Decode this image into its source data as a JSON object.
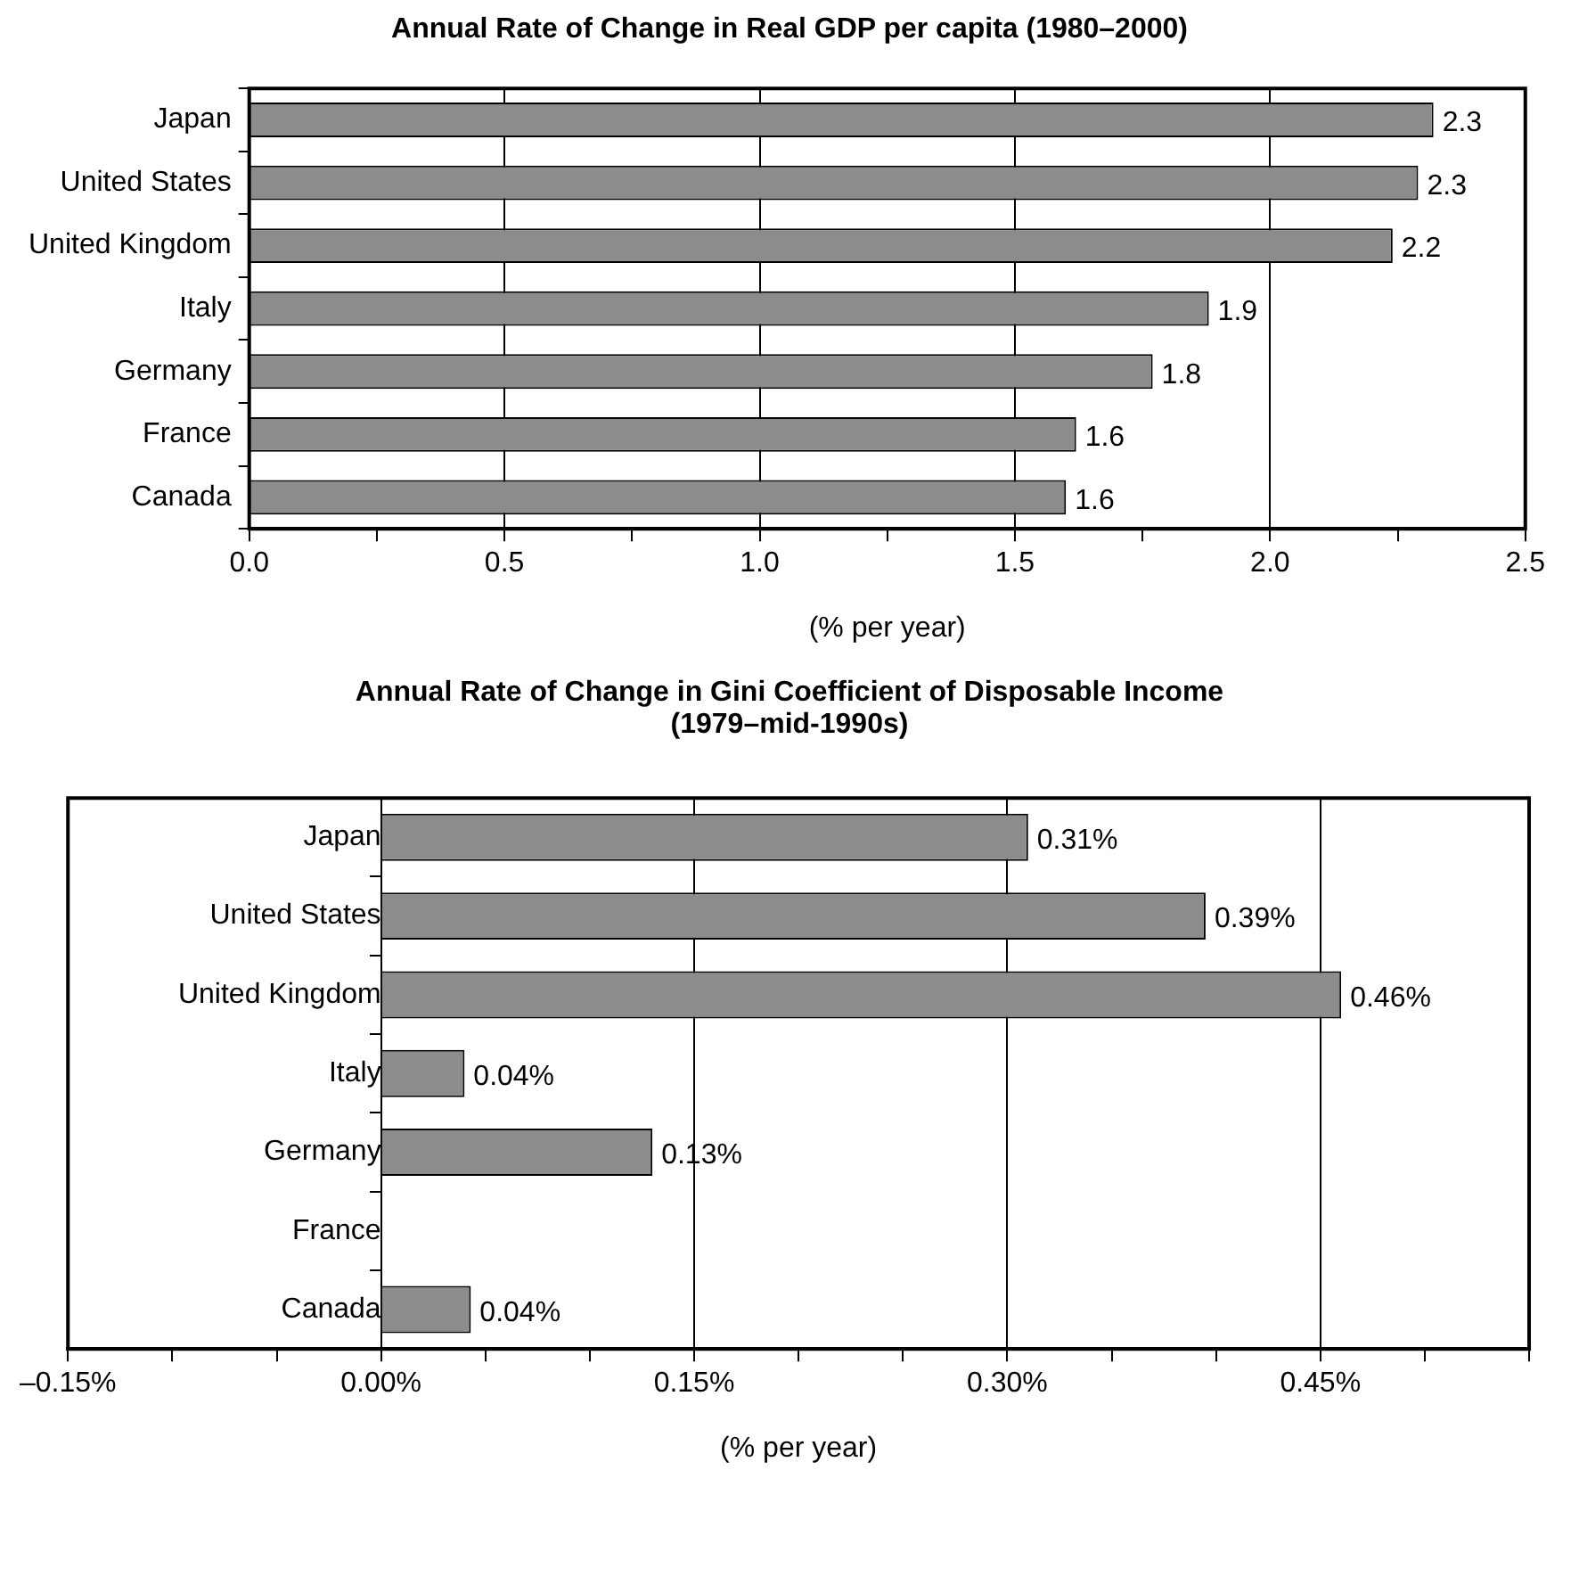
{
  "chart_data": [
    {
      "type": "bar",
      "orientation": "horizontal",
      "title": "Annual Rate of Change in Real GDP per capita (1980–2000)",
      "xlabel": "(% per year)",
      "categories": [
        "Japan",
        "United States",
        "United Kingdom",
        "Italy",
        "Germany",
        "France",
        "Canada"
      ],
      "values": [
        2.32,
        2.29,
        2.24,
        1.88,
        1.77,
        1.62,
        1.6
      ],
      "value_labels": [
        "2.3",
        "2.3",
        "2.2",
        "1.9",
        "1.8",
        "1.6",
        "1.6"
      ],
      "color": "#8c8c8c",
      "xlim": [
        0,
        2.5
      ],
      "xticks": [
        {
          "value": 0,
          "label": "0.0"
        },
        {
          "value": 0.25,
          "label": null
        },
        {
          "value": 0.5,
          "label": "0.5"
        },
        {
          "value": 0.75,
          "label": null
        },
        {
          "value": 1,
          "label": "1.0"
        },
        {
          "value": 1.25,
          "label": null
        },
        {
          "value": 1.5,
          "label": "1.5"
        },
        {
          "value": 1.75,
          "label": null
        },
        {
          "value": 2,
          "label": "2.0"
        },
        {
          "value": 2.25,
          "label": null
        },
        {
          "value": 2.5,
          "label": "2.5"
        }
      ],
      "grid": "x"
    },
    {
      "type": "bar",
      "orientation": "horizontal",
      "title": "Annual Rate of Change in Gini Coefficient of Disposable Income (1979–mid-1990s)",
      "xlabel": "(% per year)",
      "categories": [
        "Japan",
        "United States",
        "United Kingdom",
        "Italy",
        "Germany",
        "France",
        "Canada"
      ],
      "values": [
        0.31,
        0.395,
        0.46,
        0.04,
        0.13,
        null,
        0.043
      ],
      "value_labels": [
        "0.31%",
        "0.39%",
        "0.46%",
        "0.04%",
        "0.13%",
        null,
        "0.04%"
      ],
      "color": "#8c8c8c",
      "xlim": [
        -0.15,
        0.55
      ],
      "xticks": [
        {
          "value": -0.15,
          "label": "–0.15%"
        },
        {
          "value": -0.1,
          "label": null
        },
        {
          "value": -0.05,
          "label": null
        },
        {
          "value": 0,
          "label": "0.00%"
        },
        {
          "value": 0.05,
          "label": null
        },
        {
          "value": 0.1,
          "label": null
        },
        {
          "value": 0.15,
          "label": "0.15%"
        },
        {
          "value": 0.2,
          "label": null
        },
        {
          "value": 0.25,
          "label": null
        },
        {
          "value": 0.3,
          "label": "0.30%"
        },
        {
          "value": 0.35,
          "label": null
        },
        {
          "value": 0.4,
          "label": null
        },
        {
          "value": 0.45,
          "label": "0.45%"
        },
        {
          "value": 0.5,
          "label": null
        },
        {
          "value": 0.55,
          "label": null
        }
      ],
      "grid": "x"
    }
  ]
}
